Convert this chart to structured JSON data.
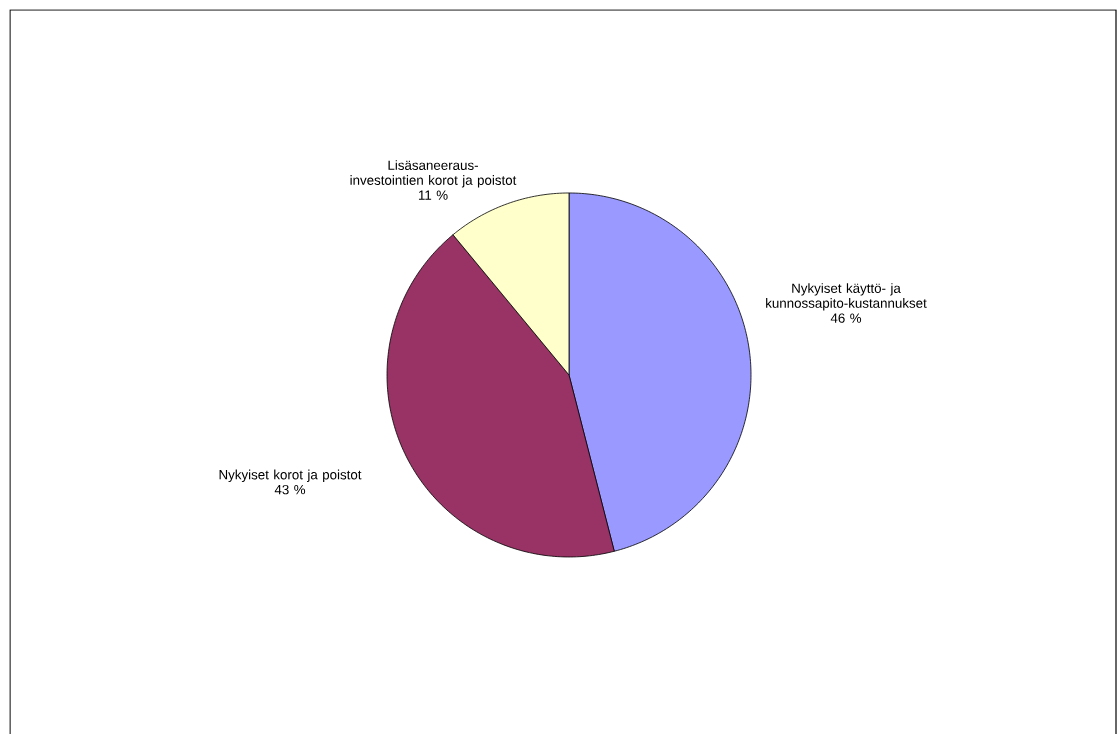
{
  "chart_data": {
    "type": "pie",
    "categories": [
      "Nykyiset käyttö- ja kunnossapito-kustannukset",
      "Nykyiset korot ja poistot",
      "Lisäsaneeraus-investointien korot ja poistot"
    ],
    "values": [
      46,
      43,
      11
    ],
    "colors": [
      "#9999ff",
      "#993366",
      "#ffffcc"
    ],
    "value_labels": [
      "46 %",
      "43 %",
      "11 %"
    ]
  }
}
